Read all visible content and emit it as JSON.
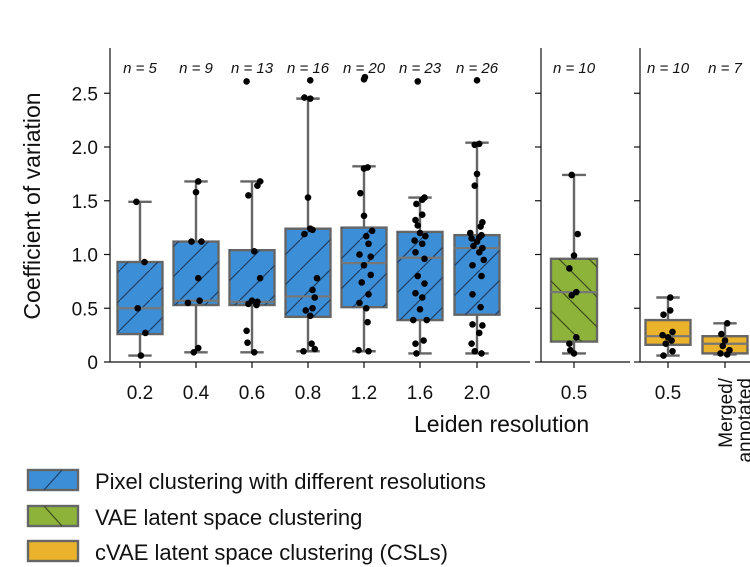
{
  "chart_data": {
    "type": "box",
    "ylabel": "Coefficient of variation",
    "xlabel": "Leiden resolution",
    "ylim": [
      0,
      2.8
    ],
    "yticks": [
      0,
      0.5,
      1.0,
      1.5,
      2.0,
      2.5
    ],
    "ytick_labels": [
      "0",
      "0.5",
      "1.0",
      "1.5",
      "2.0",
      "2.5"
    ],
    "colors": {
      "pixel": "#3c8fd6",
      "vae": "#8db33a",
      "cvae": "#ebb22b"
    },
    "panels": [
      {
        "name": "pixel",
        "boxes": [
          {
            "label": "0.2",
            "n": "n = 5",
            "q1": 0.26,
            "median": 0.5,
            "q3": 0.93,
            "wlo": 0.06,
            "whi": 1.49,
            "points": [
              [
                0.06,
                0.02
              ],
              [
                0.27,
                0.12
              ],
              [
                0.5,
                -0.05
              ],
              [
                0.93,
                0.1
              ],
              [
                1.49,
                -0.08
              ]
            ]
          },
          {
            "label": "0.4",
            "n": "n = 9",
            "q1": 0.53,
            "median": 0.57,
            "q3": 1.12,
            "wlo": 0.09,
            "whi": 1.68,
            "points": [
              [
                0.09,
                -0.05
              ],
              [
                0.13,
                0.05
              ],
              [
                0.55,
                -0.18
              ],
              [
                0.57,
                0.08
              ],
              [
                0.78,
                0.05
              ],
              [
                1.12,
                0.12
              ],
              [
                1.12,
                -0.1
              ],
              [
                1.58,
                0.0
              ],
              [
                1.68,
                0.05
              ]
            ]
          },
          {
            "label": "0.6",
            "n": "n = 13",
            "q1": 0.53,
            "median": 0.56,
            "q3": 1.04,
            "wlo": 0.09,
            "whi": 1.68,
            "points": [
              [
                0.09,
                0.05
              ],
              [
                0.18,
                -0.1
              ],
              [
                0.29,
                -0.12
              ],
              [
                0.53,
                0.1
              ],
              [
                0.54,
                -0.08
              ],
              [
                0.56,
                0.12
              ],
              [
                0.57,
                0.0
              ],
              [
                0.78,
                0.18
              ],
              [
                1.03,
                0.05
              ],
              [
                1.55,
                -0.08
              ],
              [
                1.64,
                0.12
              ],
              [
                1.68,
                0.18
              ],
              [
                2.61,
                -0.12
              ]
            ]
          },
          {
            "label": "0.8",
            "n": "n = 16",
            "q1": 0.42,
            "median": 0.61,
            "q3": 1.24,
            "wlo": 0.1,
            "whi": 2.45,
            "points": [
              [
                0.1,
                -0.1
              ],
              [
                0.12,
                0.15
              ],
              [
                0.17,
                0.08
              ],
              [
                0.43,
                0.05
              ],
              [
                0.48,
                -0.05
              ],
              [
                0.5,
                0.1
              ],
              [
                0.6,
                0.15
              ],
              [
                0.67,
                0.1
              ],
              [
                0.78,
                0.2
              ],
              [
                1.19,
                -0.08
              ],
              [
                1.23,
                0.1
              ],
              [
                1.24,
                0.05
              ],
              [
                1.53,
                0.0
              ],
              [
                2.45,
                0.05
              ],
              [
                2.46,
                -0.08
              ],
              [
                2.62,
                0.05
              ]
            ]
          },
          {
            "label": "1.2",
            "n": "n = 20",
            "q1": 0.51,
            "median": 0.92,
            "q3": 1.25,
            "wlo": 0.1,
            "whi": 1.82,
            "points": [
              [
                0.1,
                0.1
              ],
              [
                0.11,
                -0.12
              ],
              [
                0.37,
                0.08
              ],
              [
                0.5,
                0.05
              ],
              [
                0.55,
                -0.1
              ],
              [
                0.63,
                0.1
              ],
              [
                0.74,
                -0.05
              ],
              [
                0.81,
                0.15
              ],
              [
                0.9,
                0.0
              ],
              [
                0.98,
                0.15
              ],
              [
                1.0,
                -0.1
              ],
              [
                1.1,
                0.1
              ],
              [
                1.17,
                0.05
              ],
              [
                1.22,
                0.18
              ],
              [
                1.36,
                0.0
              ],
              [
                1.57,
                -0.08
              ],
              [
                1.8,
                0.0
              ],
              [
                1.81,
                0.08
              ],
              [
                2.63,
                0.0
              ],
              [
                2.65,
                0.02
              ]
            ]
          },
          {
            "label": "1.6",
            "n": "n = 23",
            "q1": 0.39,
            "median": 0.97,
            "q3": 1.21,
            "wlo": 0.08,
            "whi": 1.53,
            "points": [
              [
                0.08,
                -0.08
              ],
              [
                0.17,
                -0.1
              ],
              [
                0.2,
                0.08
              ],
              [
                0.39,
                -0.15
              ],
              [
                0.39,
                0.15
              ],
              [
                0.49,
                0.0
              ],
              [
                0.6,
                0.05
              ],
              [
                0.64,
                -0.1
              ],
              [
                0.73,
                0.1
              ],
              [
                0.8,
                -0.05
              ],
              [
                0.96,
                0.1
              ],
              [
                1.02,
                -0.1
              ],
              [
                1.1,
                0.05
              ],
              [
                1.13,
                -0.12
              ],
              [
                1.17,
                0.12
              ],
              [
                1.2,
                0.0
              ],
              [
                1.27,
                -0.05
              ],
              [
                1.32,
                -0.1
              ],
              [
                1.37,
                0.05
              ],
              [
                1.47,
                -0.08
              ],
              [
                1.51,
                0.05
              ],
              [
                1.53,
                0.1
              ],
              [
                2.61,
                -0.05
              ]
            ]
          },
          {
            "label": "2.0",
            "n": "n = 26",
            "q1": 0.44,
            "median": 1.06,
            "q3": 1.18,
            "wlo": 0.08,
            "whi": 2.04,
            "points": [
              [
                0.08,
                0.1
              ],
              [
                0.1,
                -0.05
              ],
              [
                0.17,
                -0.12
              ],
              [
                0.27,
                0.05
              ],
              [
                0.34,
                0.12
              ],
              [
                0.35,
                -0.1
              ],
              [
                0.51,
                0.08
              ],
              [
                0.63,
                -0.1
              ],
              [
                0.8,
                0.1
              ],
              [
                0.9,
                -0.1
              ],
              [
                0.95,
                0.15
              ],
              [
                1.02,
                0.05
              ],
              [
                1.06,
                0.12
              ],
              [
                1.08,
                -0.08
              ],
              [
                1.12,
                0.0
              ],
              [
                1.15,
                -0.12
              ],
              [
                1.16,
                0.05
              ],
              [
                1.18,
                0.1
              ],
              [
                1.2,
                -0.15
              ],
              [
                1.26,
                0.08
              ],
              [
                1.3,
                0.12
              ],
              [
                1.64,
                -0.05
              ],
              [
                1.75,
                0.0
              ],
              [
                2.02,
                -0.05
              ],
              [
                2.03,
                0.05
              ],
              [
                2.62,
                0.0
              ]
            ]
          }
        ]
      },
      {
        "name": "vae",
        "boxes": [
          {
            "label": "0.5",
            "n": "n = 10",
            "q1": 0.19,
            "median": 0.65,
            "q3": 0.96,
            "wlo": 0.08,
            "whi": 1.74,
            "points": [
              [
                0.08,
                0.0
              ],
              [
                0.11,
                -0.08
              ],
              [
                0.17,
                -0.1
              ],
              [
                0.23,
                0.05
              ],
              [
                0.62,
                -0.05
              ],
              [
                0.65,
                0.05
              ],
              [
                0.87,
                -0.1
              ],
              [
                0.99,
                0.0
              ],
              [
                1.19,
                0.08
              ],
              [
                1.74,
                -0.05
              ]
            ]
          }
        ]
      },
      {
        "name": "cvae",
        "boxes": [
          {
            "label": "0.5",
            "n": "n = 10",
            "q1": 0.16,
            "median": 0.24,
            "q3": 0.39,
            "wlo": 0.06,
            "whi": 0.6,
            "points": [
              [
                0.06,
                -0.1
              ],
              [
                0.1,
                0.1
              ],
              [
                0.17,
                -0.05
              ],
              [
                0.2,
                0.08
              ],
              [
                0.23,
                0.0
              ],
              [
                0.25,
                -0.12
              ],
              [
                0.28,
                0.1
              ],
              [
                0.44,
                -0.1
              ],
              [
                0.48,
                0.05
              ],
              [
                0.6,
                0.05
              ]
            ]
          },
          {
            "label": "Merged/ annotated",
            "n": "n = 7",
            "q1": 0.08,
            "median": 0.17,
            "q3": 0.24,
            "wlo": 0.07,
            "whi": 0.36,
            "points": [
              [
                0.07,
                0.05
              ],
              [
                0.08,
                -0.1
              ],
              [
                0.11,
                0.1
              ],
              [
                0.15,
                -0.05
              ],
              [
                0.2,
                0.0
              ],
              [
                0.26,
                -0.08
              ],
              [
                0.36,
                0.05
              ]
            ]
          }
        ]
      }
    ],
    "legend": [
      {
        "label": "Pixel clustering with different resolutions",
        "color_key": "pixel",
        "hatch": "/"
      },
      {
        "label": "VAE latent space clustering",
        "color_key": "vae",
        "hatch": "\\"
      },
      {
        "label": "cVAE latent space clustering (CSLs)",
        "color_key": "cvae",
        "hatch": ""
      }
    ]
  }
}
